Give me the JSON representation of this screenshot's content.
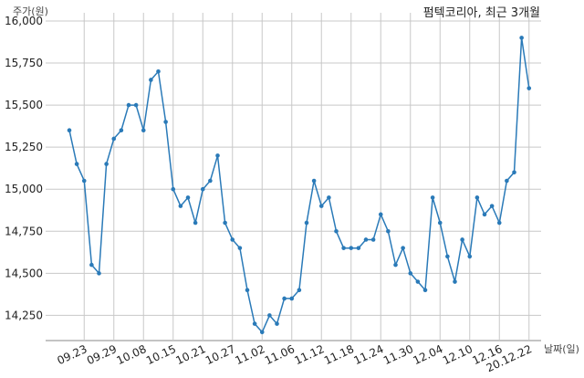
{
  "chart_data": {
    "type": "line",
    "title": "펌텍코리아, 최근 3개월",
    "ylabel": "주가(원)",
    "xlabel": "날짜(일)",
    "ylim": [
      14100,
      16000
    ],
    "yticks": [
      14250,
      14500,
      14750,
      15000,
      15250,
      15500,
      15750,
      16000
    ],
    "ytick_labels": [
      "14,250",
      "14,500",
      "14,750",
      "15,000",
      "15,250",
      "15,500",
      "15,750",
      "16,000"
    ],
    "xtick_labels": [
      "09.23",
      "09.29",
      "10.08",
      "10.15",
      "10.21",
      "10.27",
      "11.02",
      "11.06",
      "11.12",
      "11.18",
      "11.24",
      "11.30",
      "12.04",
      "12.10",
      "12.16",
      "20.12.22"
    ],
    "xtick_index": [
      2,
      6,
      10,
      14,
      18,
      22,
      26,
      30,
      34,
      38,
      42,
      46,
      50,
      54,
      58,
      62
    ],
    "grid": true,
    "series": [
      {
        "values": [
          15350,
          15150,
          15050,
          14550,
          14500,
          15150,
          15300,
          15350,
          15500,
          15500,
          15350,
          15650,
          15700,
          15400,
          15000,
          14900,
          14950,
          14800,
          15000,
          15050,
          15200,
          14800,
          14700,
          14650,
          14400,
          14200,
          14150,
          14250,
          14200,
          14350,
          14350,
          14400,
          14800,
          15050,
          14900,
          14950,
          14750,
          14650,
          14650,
          14650,
          14700,
          14700,
          14850,
          14750,
          14550,
          14650,
          14500,
          14450,
          14400,
          14950,
          14800,
          14600,
          14450,
          14700,
          14600,
          14950,
          14850,
          14900,
          14800,
          15050,
          15100,
          15900,
          15600
        ]
      }
    ]
  }
}
